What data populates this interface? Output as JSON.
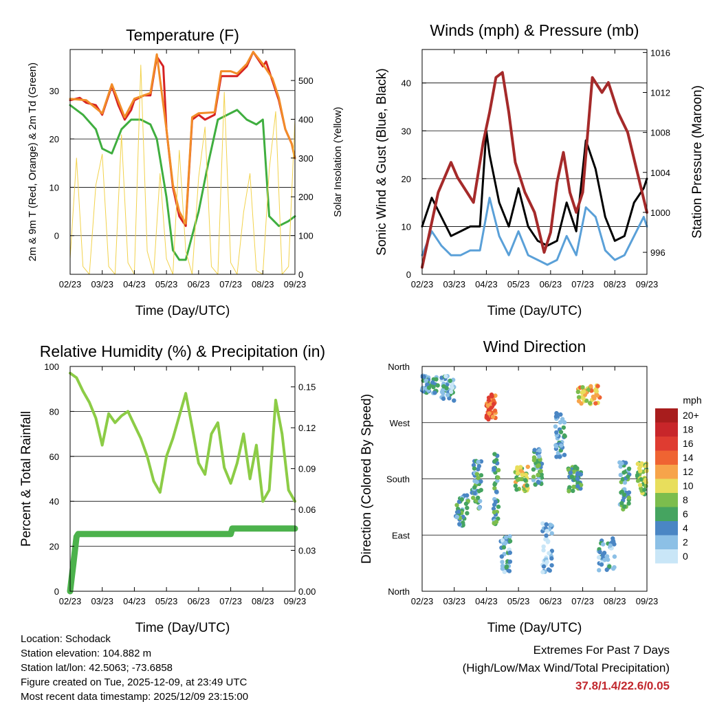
{
  "chart_data": [
    {
      "type": "line",
      "title": "Temperature (F)",
      "xlabel": "Time (Day/UTC)",
      "ylabel_left": "2m & 9m T (Red, Orange) & 2m Td (Green)",
      "ylabel_right": "Solar Insolation (Yellow)",
      "x_ticks": [
        "02/23",
        "03/23",
        "04/23",
        "05/23",
        "06/23",
        "07/23",
        "08/23",
        "09/23"
      ],
      "ylim": [
        -8,
        38.5
      ],
      "y_ticks": [
        0,
        10,
        20,
        30
      ],
      "y2lim": [
        0,
        580
      ],
      "y2_ticks": [
        0,
        100,
        200,
        300,
        400,
        500
      ],
      "series": [
        {
          "name": "2m T",
          "color": "#d62222",
          "x": [
            0,
            0.3,
            0.5,
            0.8,
            1.0,
            1.3,
            1.5,
            1.7,
            1.9,
            2.0,
            2.3,
            2.5,
            2.7,
            2.9,
            3.0,
            3.1,
            3.2,
            3.4,
            3.6,
            3.8,
            4.0,
            4.2,
            4.5,
            4.7,
            5.0,
            5.2,
            5.5,
            5.7,
            6.0,
            6.1,
            6.3,
            6.5,
            6.7,
            6.9,
            7.0
          ],
          "values": [
            28,
            28.5,
            27.5,
            27,
            25,
            31,
            27,
            24,
            26,
            28,
            29,
            29,
            37,
            35,
            22,
            16,
            10,
            4,
            2,
            24,
            25,
            24,
            25,
            33,
            33,
            33,
            35,
            38,
            35,
            36,
            32,
            28,
            22,
            19,
            16
          ]
        },
        {
          "name": "9m T",
          "color": "#f28c28",
          "x": [
            0,
            0.5,
            1.0,
            1.3,
            1.7,
            2.0,
            2.5,
            2.7,
            3.0,
            3.2,
            3.4,
            3.6,
            3.8,
            4.0,
            4.5,
            4.7,
            5.0,
            5.2,
            5.5,
            5.7,
            6.0,
            6.3,
            6.5,
            6.7,
            6.9,
            7.0
          ],
          "values": [
            28.3,
            28,
            25.3,
            31.3,
            24.5,
            28.3,
            29.5,
            37.5,
            22,
            10.5,
            5,
            2.5,
            24.5,
            25.3,
            25.5,
            34,
            34,
            33.5,
            35.5,
            38,
            35.5,
            32.5,
            28.5,
            22,
            19,
            16
          ]
        },
        {
          "name": "2m Td",
          "color": "#3fae3f",
          "x": [
            0,
            0.4,
            0.8,
            1.0,
            1.3,
            1.6,
            1.9,
            2.2,
            2.5,
            2.7,
            3.0,
            3.2,
            3.4,
            3.6,
            3.8,
            4.0,
            4.3,
            4.6,
            4.9,
            5.2,
            5.5,
            5.8,
            6.0,
            6.2,
            6.5,
            6.8,
            7.0
          ],
          "values": [
            27,
            25,
            22,
            18,
            17,
            22,
            24,
            24,
            23,
            20,
            8,
            -3,
            -5,
            -5,
            0,
            5,
            15,
            24,
            25,
            26,
            24,
            23,
            24,
            4,
            2,
            3,
            4
          ]
        },
        {
          "name": "Solar Insolation",
          "axis": "right",
          "color": "#f2d24b",
          "x": [
            0,
            0.2,
            0.4,
            0.6,
            0.8,
            1.0,
            1.2,
            1.4,
            1.6,
            1.8,
            2.0,
            2.2,
            2.4,
            2.6,
            2.8,
            3.0,
            3.2,
            3.4,
            3.6,
            3.8,
            4.0,
            4.2,
            4.4,
            4.6,
            4.8,
            5.0,
            5.2,
            5.4,
            5.6,
            5.8,
            6.0,
            6.2,
            6.4,
            6.6,
            6.8,
            7.0
          ],
          "values": [
            40,
            300,
            20,
            0,
            230,
            310,
            20,
            0,
            360,
            30,
            0,
            540,
            60,
            0,
            260,
            40,
            0,
            320,
            60,
            0,
            250,
            380,
            20,
            0,
            470,
            30,
            0,
            160,
            260,
            10,
            0,
            270,
            420,
            0,
            20,
            400
          ]
        }
      ]
    },
    {
      "type": "line",
      "title": "Winds (mph) & Pressure (mb)",
      "xlabel": "Time (Day/UTC)",
      "ylabel_left": "Sonic Wind & Gust (Blue, Black)",
      "ylabel_right": "Station Pressure (Maroon)",
      "x_ticks": [
        "02/23",
        "03/23",
        "04/23",
        "05/23",
        "06/23",
        "07/23",
        "08/23",
        "09/23"
      ],
      "ylim": [
        0,
        47
      ],
      "y_ticks": [
        0,
        10,
        20,
        30,
        40
      ],
      "y2lim": [
        993.8,
        1016.3
      ],
      "y2_ticks": [
        996,
        1000,
        1004,
        1008,
        1012,
        1016
      ],
      "series": [
        {
          "name": "Sonic Wind",
          "color": "#5aa0d8",
          "x": [
            0,
            0.3,
            0.6,
            0.9,
            1.2,
            1.5,
            1.8,
            2.1,
            2.4,
            2.7,
            3.0,
            3.3,
            3.6,
            3.9,
            4.2,
            4.5,
            4.8,
            5.1,
            5.4,
            5.7,
            6.0,
            6.3,
            6.6,
            6.9,
            7.0
          ],
          "values": [
            4,
            9,
            6,
            4,
            4,
            5,
            5,
            16,
            8,
            4,
            9,
            4,
            3,
            2,
            3,
            8,
            4,
            14,
            12,
            5,
            3,
            4,
            8,
            12,
            10
          ]
        },
        {
          "name": "Gust",
          "color": "#000000",
          "x": [
            0,
            0.3,
            0.6,
            0.9,
            1.2,
            1.5,
            1.8,
            2.0,
            2.1,
            2.4,
            2.7,
            3.0,
            3.3,
            3.6,
            3.9,
            4.2,
            4.5,
            4.8,
            5.1,
            5.4,
            5.7,
            6.0,
            6.3,
            6.6,
            6.9,
            7.0
          ],
          "values": [
            10,
            16,
            12,
            8,
            9,
            10,
            10,
            30,
            25,
            15,
            10,
            18,
            10,
            7,
            6,
            7,
            15,
            9,
            28,
            22,
            12,
            7,
            8,
            15,
            18,
            20
          ]
        },
        {
          "name": "Station Pressure",
          "axis": "right",
          "color": "#a52a2a",
          "x": [
            0,
            0.5,
            0.9,
            1.1,
            1.6,
            1.9,
            2.1,
            2.3,
            2.5,
            2.7,
            2.9,
            3.2,
            3.5,
            3.8,
            4.0,
            4.2,
            4.4,
            4.6,
            4.8,
            5.0,
            5.3,
            5.6,
            5.8,
            6.1,
            6.4,
            6.7,
            7.0
          ],
          "values": [
            994.5,
            1002,
            1005,
            1003.5,
            1001,
            1007,
            1010,
            1013.5,
            1014,
            1010,
            1005,
            1002,
            1000,
            996,
            998,
            1003,
            1006,
            1002,
            1000,
            1002,
            1013.5,
            1012,
            1013,
            1010,
            1008,
            1004,
            1000
          ]
        }
      ]
    },
    {
      "type": "line",
      "title": "Relative Humidity (%) & Precipitation (in)",
      "xlabel": "Time (Day/UTC)",
      "ylabel_left": "Percent & Total Rainfall",
      "x_ticks": [
        "02/23",
        "03/23",
        "04/23",
        "05/23",
        "06/23",
        "07/23",
        "08/23",
        "09/23"
      ],
      "ylim": [
        0,
        100
      ],
      "y_ticks": [
        0,
        20,
        40,
        60,
        80,
        100
      ],
      "y2lim": [
        0,
        0.165
      ],
      "y2_ticks": [
        "0.00",
        "0.03",
        "0.06",
        "0.09",
        "0.12",
        "0.15"
      ],
      "series": [
        {
          "name": "Relative Humidity",
          "color": "#8ccc46",
          "x": [
            0,
            0.2,
            0.4,
            0.6,
            0.8,
            1.0,
            1.2,
            1.4,
            1.6,
            1.8,
            2.0,
            2.2,
            2.4,
            2.6,
            2.8,
            3.0,
            3.2,
            3.4,
            3.6,
            3.8,
            4.0,
            4.2,
            4.4,
            4.6,
            4.8,
            5.0,
            5.2,
            5.4,
            5.6,
            5.8,
            6.0,
            6.2,
            6.4,
            6.6,
            6.8,
            7.0
          ],
          "values": [
            97,
            95,
            89,
            84,
            77,
            65,
            79,
            75,
            78,
            80,
            74,
            68,
            60,
            49,
            44,
            60,
            68,
            78,
            88,
            73,
            57,
            52,
            70,
            75,
            55,
            48,
            57,
            70,
            50,
            65,
            40,
            45,
            85,
            70,
            45,
            40
          ]
        },
        {
          "name": "Total Precipitation",
          "axis": "right",
          "color": "#4cb24c",
          "x": [
            0,
            0.05,
            0.1,
            0.15,
            0.2,
            0.25,
            0.3,
            5.0,
            5.05,
            7.0
          ],
          "values": [
            0,
            0.01,
            0.02,
            0.03,
            0.04,
            0.042,
            0.042,
            0.042,
            0.046,
            0.046
          ]
        }
      ]
    },
    {
      "type": "scatter",
      "title": "Wind Direction",
      "xlabel": "Time (Day/UTC)",
      "ylabel_left": "Direction (Colored By Speed)",
      "x_ticks": [
        "02/23",
        "03/23",
        "04/23",
        "05/23",
        "06/23",
        "07/23",
        "08/23",
        "09/23"
      ],
      "y_tick_labels": [
        "North",
        "East",
        "South",
        "West",
        "North"
      ],
      "ylim": [
        0,
        360
      ],
      "legend_title": "mph",
      "legend_labels": [
        "20+",
        "18",
        "16",
        "14",
        "12",
        "10",
        "8",
        "6",
        "4",
        "2",
        "0"
      ],
      "legend_colors": [
        "#a81d1d",
        "#c8262a",
        "#df3c31",
        "#ef6432",
        "#f7a44a",
        "#e8de5c",
        "#7cbd4d",
        "#45a460",
        "#4a86c4",
        "#8cc0e6",
        "#c9e6f7"
      ],
      "clusters": [
        {
          "x": 0.25,
          "dir": 330,
          "speed": 4,
          "spread_x": 0.25,
          "spread_y": 15
        },
        {
          "x": 0.8,
          "dir": 325,
          "speed": 3,
          "spread_x": 0.2,
          "spread_y": 20
        },
        {
          "x": 1.25,
          "dir": 130,
          "speed": 5,
          "spread_x": 0.2,
          "spread_y": 25
        },
        {
          "x": 1.7,
          "dir": 170,
          "speed": 5,
          "spread_x": 0.15,
          "spread_y": 40
        },
        {
          "x": 2.15,
          "dir": 295,
          "speed": 14,
          "spread_x": 0.15,
          "spread_y": 20
        },
        {
          "x": 2.3,
          "dir": 160,
          "speed": 5,
          "spread_x": 0.08,
          "spread_y": 60
        },
        {
          "x": 2.6,
          "dir": 60,
          "speed": 3,
          "spread_x": 0.15,
          "spread_y": 30
        },
        {
          "x": 3.1,
          "dir": 180,
          "speed": 9,
          "spread_x": 0.2,
          "spread_y": 20
        },
        {
          "x": 3.6,
          "dir": 200,
          "speed": 5,
          "spread_x": 0.15,
          "spread_y": 30
        },
        {
          "x": 3.9,
          "dir": 70,
          "speed": 2,
          "spread_x": 0.15,
          "spread_y": 40
        },
        {
          "x": 4.3,
          "dir": 250,
          "speed": 4,
          "spread_x": 0.15,
          "spread_y": 40
        },
        {
          "x": 4.75,
          "dir": 180,
          "speed": 6,
          "spread_x": 0.2,
          "spread_y": 20
        },
        {
          "x": 5.2,
          "dir": 315,
          "speed": 11,
          "spread_x": 0.35,
          "spread_y": 15
        },
        {
          "x": 5.75,
          "dir": 60,
          "speed": 3,
          "spread_x": 0.25,
          "spread_y": 30
        },
        {
          "x": 6.3,
          "dir": 170,
          "speed": 5,
          "spread_x": 0.15,
          "spread_y": 40
        },
        {
          "x": 6.85,
          "dir": 180,
          "speed": 8,
          "spread_x": 0.15,
          "spread_y": 25
        }
      ]
    }
  ],
  "footer": {
    "location": "Location: Schodack",
    "elevation": "Station elevation: 104.882 m",
    "latlon": "Station lat/lon: 42.5063; -73.6858",
    "created": "Figure created on Tue, 2025-12-09, at 23:49 UTC",
    "recent": "Most recent data timestamp: 2025/12/09 23:15:00"
  },
  "extremes": {
    "title": "Extremes For Past 7 Days",
    "subtitle": "(High/Low/Max Wind/Total Precipitation)",
    "values": "37.8/1.4/22.6/0.05",
    "color": "#c1272d"
  }
}
